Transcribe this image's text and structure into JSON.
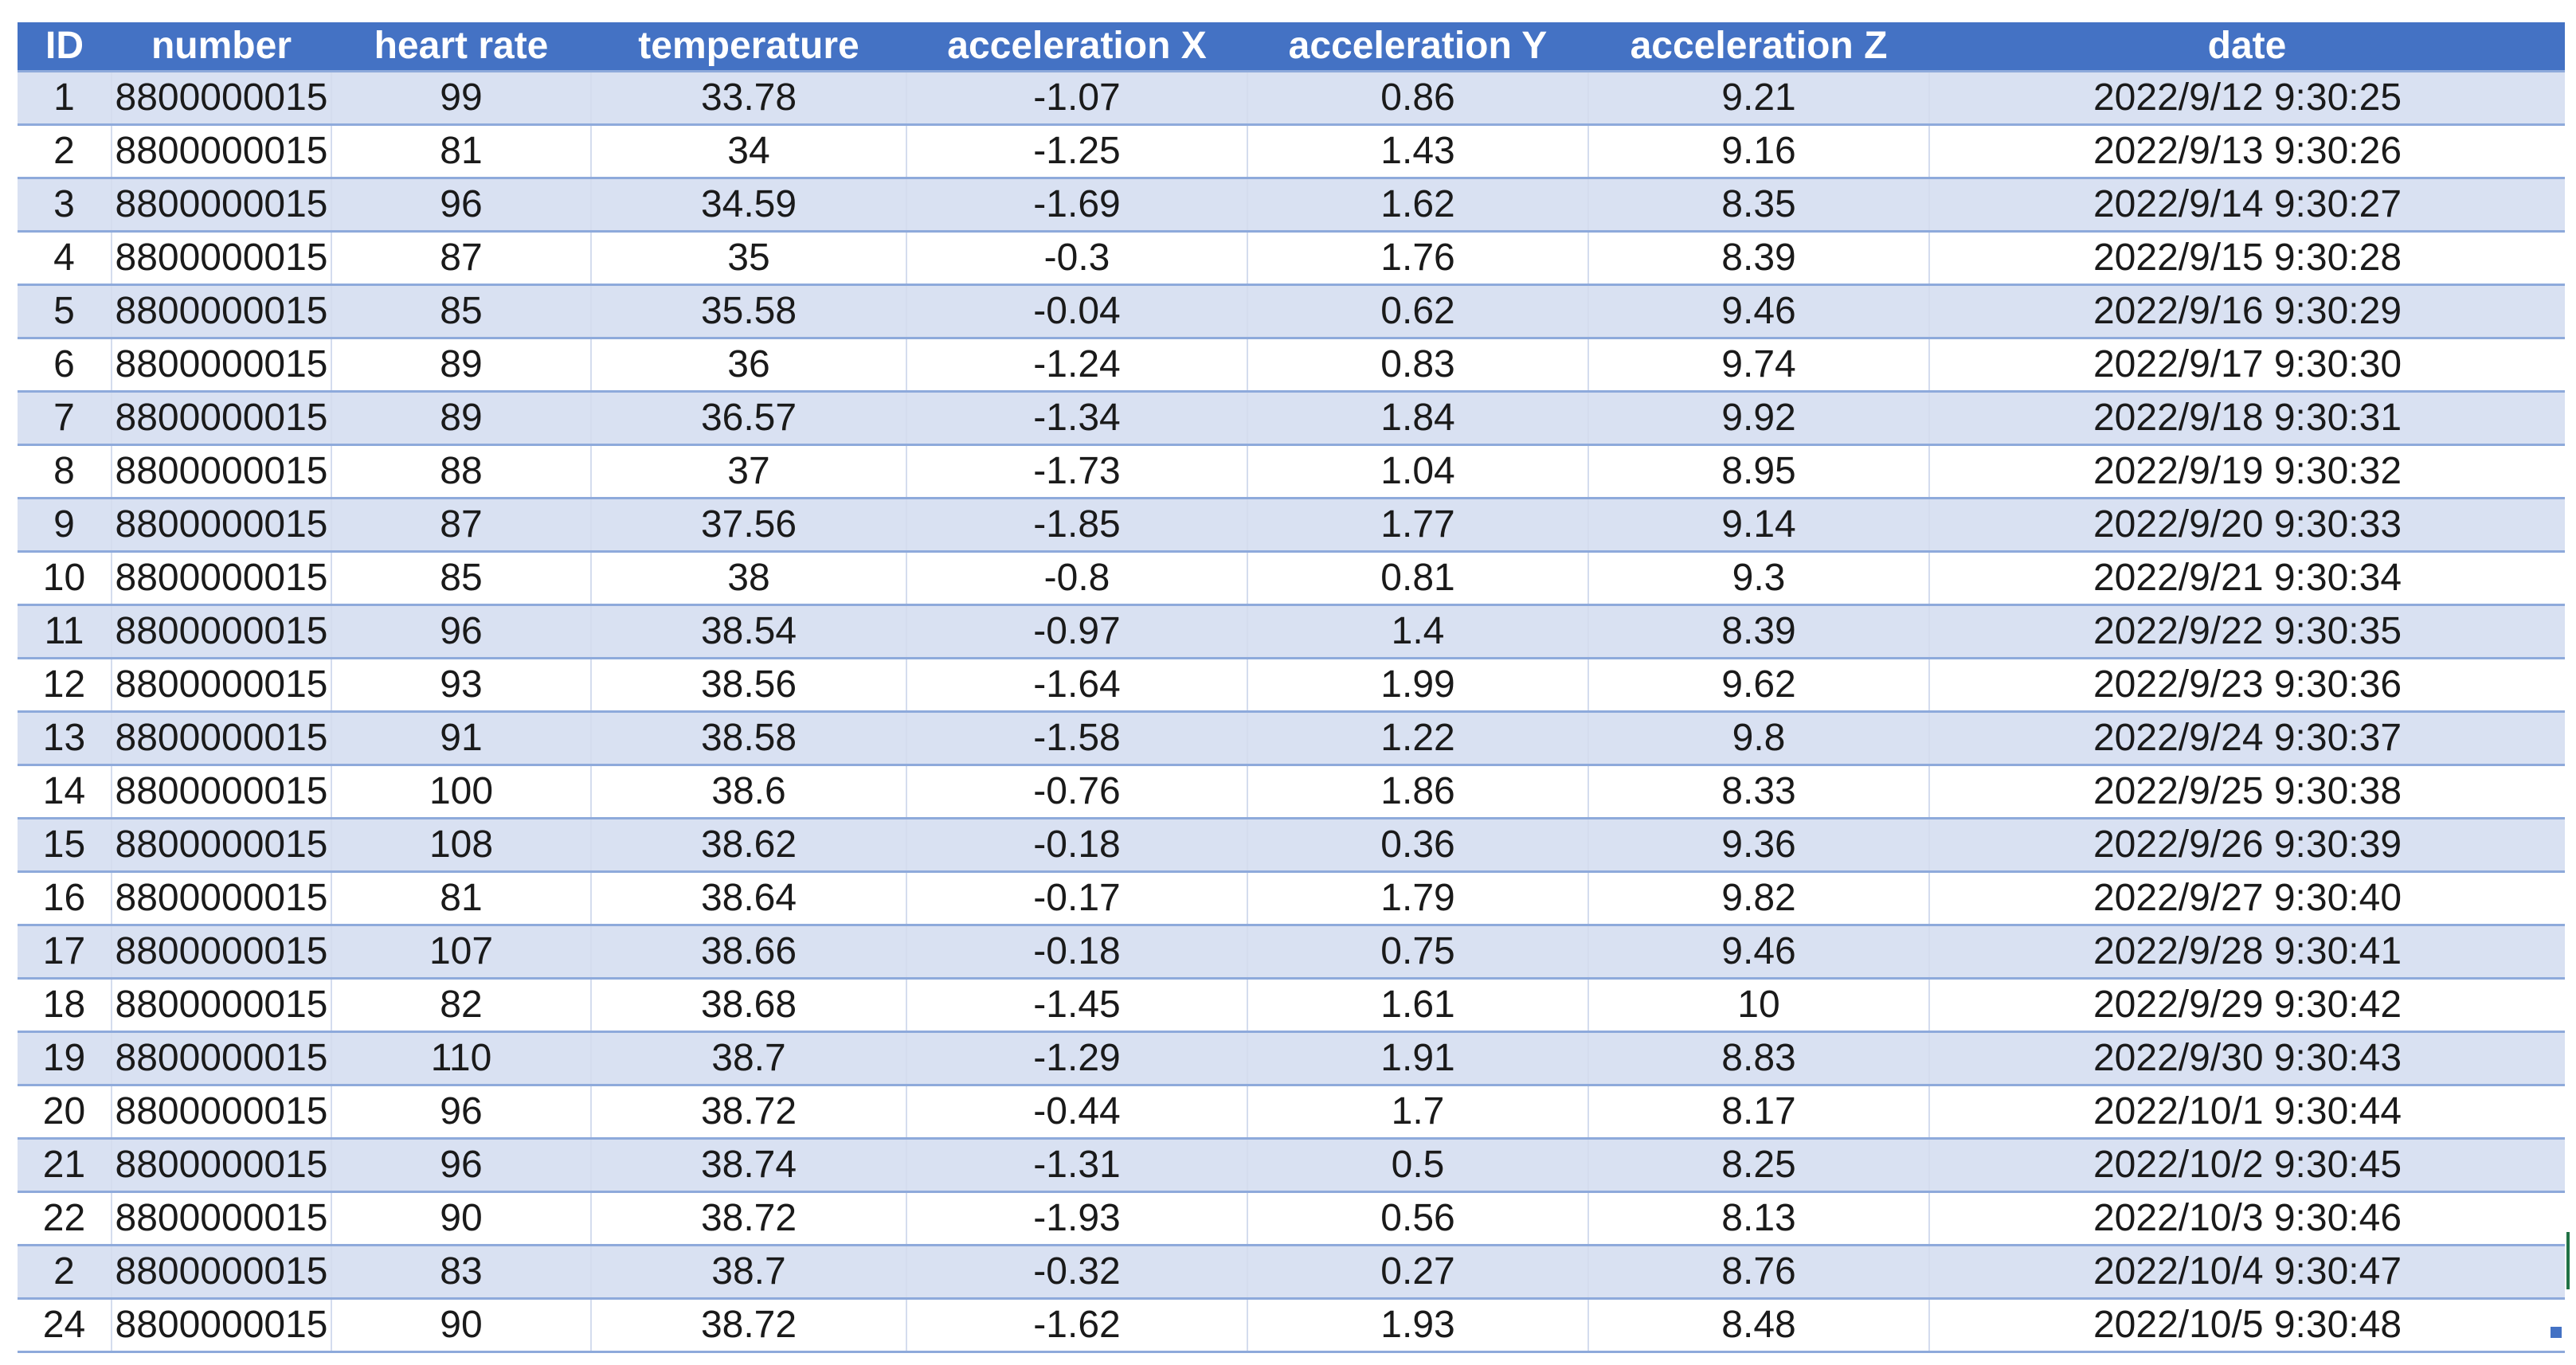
{
  "table": {
    "headers": [
      "ID",
      "number",
      "heart rate",
      "temperature",
      "acceleration X",
      "acceleration Y",
      "acceleration Z",
      "date"
    ],
    "rows": [
      [
        "1",
        "8800000015",
        "99",
        "33.78",
        "-1.07",
        "0.86",
        "9.21",
        "2022/9/12 9:30:25"
      ],
      [
        "2",
        "8800000015",
        "81",
        "34",
        "-1.25",
        "1.43",
        "9.16",
        "2022/9/13 9:30:26"
      ],
      [
        "3",
        "8800000015",
        "96",
        "34.59",
        "-1.69",
        "1.62",
        "8.35",
        "2022/9/14 9:30:27"
      ],
      [
        "4",
        "8800000015",
        "87",
        "35",
        "-0.3",
        "1.76",
        "8.39",
        "2022/9/15 9:30:28"
      ],
      [
        "5",
        "8800000015",
        "85",
        "35.58",
        "-0.04",
        "0.62",
        "9.46",
        "2022/9/16 9:30:29"
      ],
      [
        "6",
        "8800000015",
        "89",
        "36",
        "-1.24",
        "0.83",
        "9.74",
        "2022/9/17 9:30:30"
      ],
      [
        "7",
        "8800000015",
        "89",
        "36.57",
        "-1.34",
        "1.84",
        "9.92",
        "2022/9/18 9:30:31"
      ],
      [
        "8",
        "8800000015",
        "88",
        "37",
        "-1.73",
        "1.04",
        "8.95",
        "2022/9/19 9:30:32"
      ],
      [
        "9",
        "8800000015",
        "87",
        "37.56",
        "-1.85",
        "1.77",
        "9.14",
        "2022/9/20 9:30:33"
      ],
      [
        "10",
        "8800000015",
        "85",
        "38",
        "-0.8",
        "0.81",
        "9.3",
        "2022/9/21 9:30:34"
      ],
      [
        "11",
        "8800000015",
        "96",
        "38.54",
        "-0.97",
        "1.4",
        "8.39",
        "2022/9/22 9:30:35"
      ],
      [
        "12",
        "8800000015",
        "93",
        "38.56",
        "-1.64",
        "1.99",
        "9.62",
        "2022/9/23 9:30:36"
      ],
      [
        "13",
        "8800000015",
        "91",
        "38.58",
        "-1.58",
        "1.22",
        "9.8",
        "2022/9/24 9:30:37"
      ],
      [
        "14",
        "8800000015",
        "100",
        "38.6",
        "-0.76",
        "1.86",
        "8.33",
        "2022/9/25 9:30:38"
      ],
      [
        "15",
        "8800000015",
        "108",
        "38.62",
        "-0.18",
        "0.36",
        "9.36",
        "2022/9/26 9:30:39"
      ],
      [
        "16",
        "8800000015",
        "81",
        "38.64",
        "-0.17",
        "1.79",
        "9.82",
        "2022/9/27 9:30:40"
      ],
      [
        "17",
        "8800000015",
        "107",
        "38.66",
        "-0.18",
        "0.75",
        "9.46",
        "2022/9/28 9:30:41"
      ],
      [
        "18",
        "8800000015",
        "82",
        "38.68",
        "-1.45",
        "1.61",
        "10",
        "2022/9/29 9:30:42"
      ],
      [
        "19",
        "8800000015",
        "110",
        "38.7",
        "-1.29",
        "1.91",
        "8.83",
        "2022/9/30 9:30:43"
      ],
      [
        "20",
        "8800000015",
        "96",
        "38.72",
        "-0.44",
        "1.7",
        "8.17",
        "2022/10/1 9:30:44"
      ],
      [
        "21",
        "8800000015",
        "96",
        "38.74",
        "-1.31",
        "0.5",
        "8.25",
        "2022/10/2 9:30:45"
      ],
      [
        "22",
        "8800000015",
        "90",
        "38.72",
        "-1.93",
        "0.56",
        "8.13",
        "2022/10/3 9:30:46"
      ],
      [
        "2",
        "8800000015",
        "83",
        "38.7",
        "-0.32",
        "0.27",
        "8.76",
        "2022/10/4 9:30:47"
      ],
      [
        "24",
        "8800000015",
        "90",
        "38.72",
        "-1.62",
        "1.93",
        "8.48",
        "2022/10/5 9:30:48"
      ]
    ]
  },
  "colors": {
    "header_background": "#4472c4",
    "header_text": "#ffffff",
    "band_row": "#d9e1f2",
    "plain_row": "#ffffff",
    "row_divider": "#8eaadb",
    "selection_accent": "#217346"
  }
}
